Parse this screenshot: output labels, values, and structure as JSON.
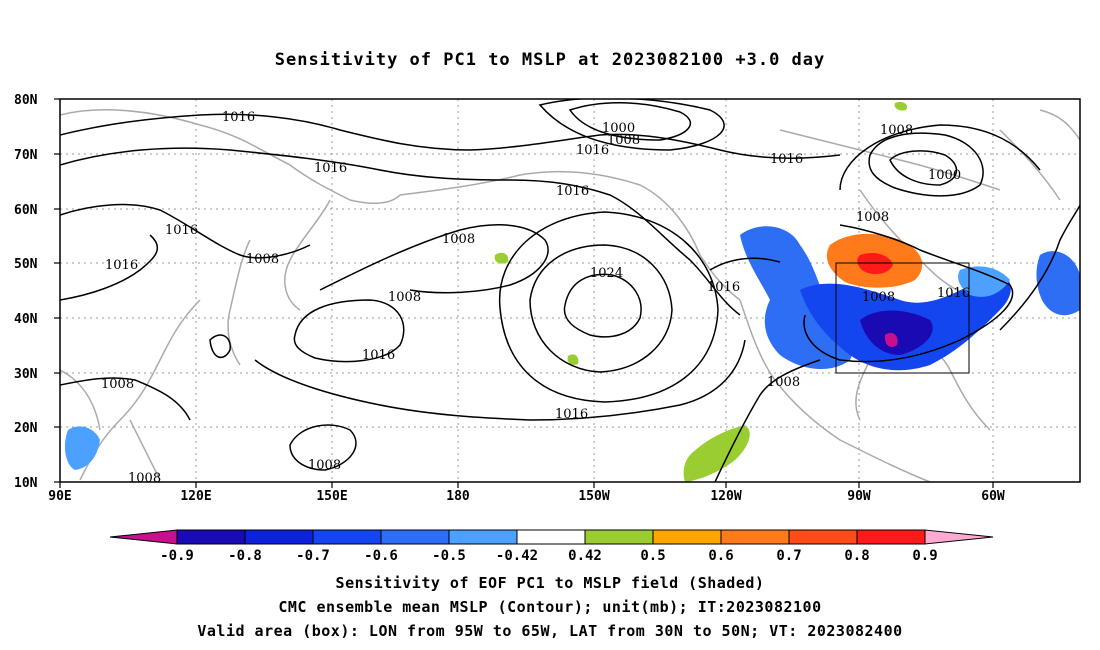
{
  "title": "Sensitivity of PC1 to MSLP at 2023082100 +3.0 day",
  "axes": {
    "lat_ticks": [
      "80N",
      "70N",
      "60N",
      "50N",
      "40N",
      "30N",
      "20N",
      "10N"
    ],
    "lon_ticks": [
      "90E",
      "120E",
      "150E",
      "180",
      "150W",
      "120W",
      "90W",
      "60W"
    ]
  },
  "contour_labels": [
    "1016",
    "1016",
    "1016",
    "1016",
    "1016",
    "1016",
    "1016",
    "1016",
    "1016",
    "1016",
    "1016",
    "1008",
    "1008",
    "1008",
    "1008",
    "1008",
    "1008",
    "1008",
    "1008",
    "1008",
    "1008",
    "1008",
    "1000",
    "1000",
    "1024"
  ],
  "colorbar": {
    "labels": [
      "-0.9",
      "-0.8",
      "-0.7",
      "-0.6",
      "-0.5",
      "-0.42",
      "0.42",
      "0.5",
      "0.6",
      "0.7",
      "0.8",
      "0.9"
    ],
    "colors": [
      "#1a0ab3",
      "#0a22d9",
      "#1446f0",
      "#2e6ef5",
      "#4ca0ff",
      "#ffffff",
      "#9acd32",
      "#ffa500",
      "#ff7a1a",
      "#ff4d1a",
      "#ff1a1a"
    ],
    "min_color": "#c8108e",
    "max_color": "#ffaad2"
  },
  "captions": {
    "line1": "Sensitivity of EOF PC1 to MSLP field (Shaded)",
    "line2": "CMC ensemble mean MSLP (Contour); unit(mb); IT:2023082100",
    "line3": "Valid area (box): LON from 95W to 65W, LAT from 30N to 50N; VT: 2023082400"
  }
}
